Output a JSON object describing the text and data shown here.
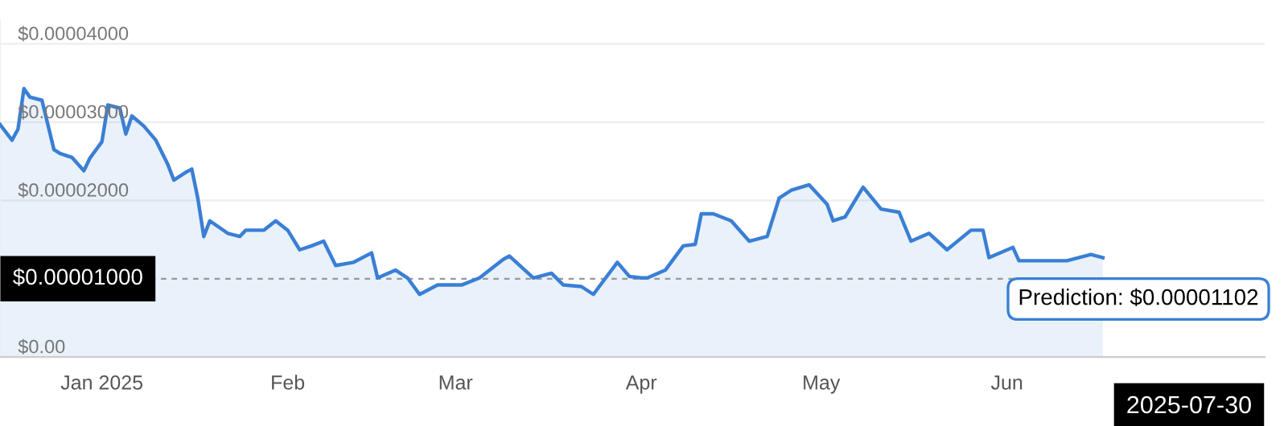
{
  "chart_data": {
    "type": "area",
    "color": "#3a7fd5",
    "x": [
      "2024-12-15",
      "2024-12-17",
      "2024-12-18",
      "2024-12-19",
      "2024-12-20",
      "2024-12-22",
      "2024-12-24",
      "2024-12-25",
      "2024-12-27",
      "2024-12-29",
      "2024-12-30",
      "2025-01-01",
      "2025-01-02",
      "2025-01-04",
      "2025-01-05",
      "2025-01-06",
      "2025-01-08",
      "2025-01-10",
      "2025-01-12",
      "2025-01-13",
      "2025-01-15",
      "2025-01-16",
      "2025-01-17",
      "2025-01-18",
      "2025-01-19",
      "2025-01-22",
      "2025-01-24",
      "2025-01-25",
      "2025-01-28",
      "2025-01-30",
      "2025-02-01",
      "2025-02-03",
      "2025-02-05",
      "2025-02-07",
      "2025-02-09",
      "2025-02-12",
      "2025-02-15",
      "2025-02-16",
      "2025-02-19",
      "2025-02-21",
      "2025-02-23",
      "2025-02-26",
      "2025-03-02",
      "2025-03-05",
      "2025-03-09",
      "2025-03-10",
      "2025-03-14",
      "2025-03-17",
      "2025-03-19",
      "2025-03-22",
      "2025-03-24",
      "2025-03-28",
      "2025-03-30",
      "2025-04-01",
      "2025-04-02",
      "2025-04-05",
      "2025-04-08",
      "2025-04-10",
      "2025-04-11",
      "2025-04-13",
      "2025-04-16",
      "2025-04-19",
      "2025-04-22",
      "2025-04-24",
      "2025-04-26",
      "2025-04-29",
      "2025-05-02",
      "2025-05-03",
      "2025-05-05",
      "2025-05-08",
      "2025-05-11",
      "2025-05-14",
      "2025-05-16",
      "2025-05-19",
      "2025-05-22",
      "2025-05-26",
      "2025-05-28",
      "2025-05-29",
      "2025-06-02",
      "2025-06-03",
      "2025-06-08",
      "2025-06-11",
      "2025-06-15",
      "2025-06-17"
    ],
    "values": [
      2.97e-05,
      2.77e-05,
      2.91e-05,
      3.43e-05,
      3.32e-05,
      3.28e-05,
      2.65e-05,
      2.6e-05,
      2.55e-05,
      2.38e-05,
      2.54e-05,
      2.75e-05,
      3.22e-05,
      3.18e-05,
      2.85e-05,
      3.08e-05,
      2.95e-05,
      2.77e-05,
      2.46e-05,
      2.26e-05,
      2.36e-05,
      2.4e-05,
      2.03e-05,
      1.54e-05,
      1.74e-05,
      1.58e-05,
      1.54e-05,
      1.62e-05,
      1.62e-05,
      1.74e-05,
      1.62e-05,
      1.37e-05,
      1.42e-05,
      1.48e-05,
      1.17e-05,
      1.21e-05,
      1.33e-05,
      1.01e-05,
      1.11e-05,
      1.01e-05,
      8e-06,
      9.2e-06,
      9.2e-06,
      1.01e-05,
      1.25e-05,
      1.29e-05,
      1.01e-05,
      1.07e-05,
      9.2e-06,
      9e-06,
      8e-06,
      1.21e-05,
      1.03e-05,
      1.01e-05,
      1.01e-05,
      1.11e-05,
      1.42e-05,
      1.44e-05,
      1.83e-05,
      1.83e-05,
      1.74e-05,
      1.48e-05,
      1.54e-05,
      2.03e-05,
      2.13e-05,
      2.2e-05,
      1.95e-05,
      1.74e-05,
      1.79e-05,
      2.17e-05,
      1.89e-05,
      1.85e-05,
      1.48e-05,
      1.58e-05,
      1.37e-05,
      1.62e-05,
      1.62e-05,
      1.27e-05,
      1.4e-05,
      1.23e-05,
      1.23e-05,
      1.23e-05,
      1.31e-05,
      1.27e-05
    ],
    "xlim": [
      "2024-12-15",
      "2025-07-14"
    ],
    "xticks": [
      {
        "value": "2025-01-01",
        "label": "Jan 2025"
      },
      {
        "value": "2025-02-01",
        "label": "Feb"
      },
      {
        "value": "2025-03-01",
        "label": "Mar"
      },
      {
        "value": "2025-04-01",
        "label": "Apr"
      },
      {
        "value": "2025-05-01",
        "label": "May"
      },
      {
        "value": "2025-06-01",
        "label": "Jun"
      }
    ],
    "ylim": [
      0,
      4.3e-05
    ],
    "yticks": [
      {
        "value": 0,
        "label": "$0.00"
      },
      {
        "value": 2e-05,
        "label": "$0.00002000"
      },
      {
        "value": 3e-05,
        "label": "$0.00003000"
      },
      {
        "value": 4e-05,
        "label": "$0.00004000"
      }
    ],
    "grid": "y",
    "ref_lines": [
      {
        "axis": "y",
        "value": 1e-05,
        "label": "$0.00001000",
        "color": "#999999",
        "line_style": "dashed"
      }
    ],
    "annotations": [
      {
        "text": "Prediction: $0.00001102",
        "x": "2025-07-14",
        "y": 1.102e-05
      },
      "2025-07-30"
    ]
  }
}
